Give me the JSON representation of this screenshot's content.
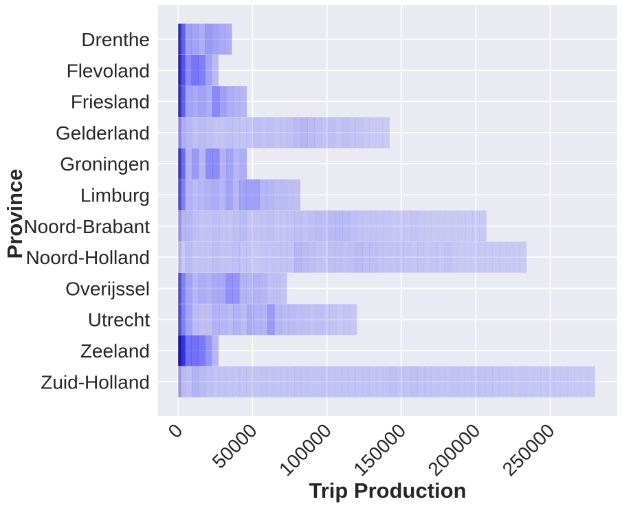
{
  "chart_data": {
    "type": "heatmap",
    "orientation": "horizontal-histogram",
    "xlabel": "Trip Production",
    "ylabel": "Province",
    "xlim": [
      -13500,
      295000
    ],
    "x_ticks": [
      0,
      50000,
      100000,
      150000,
      200000,
      250000
    ],
    "x_tick_labels": [
      "0",
      "50000",
      "100000",
      "150000",
      "200000",
      "250000"
    ],
    "x_tick_rotation": 45,
    "grid": true,
    "background": "#eaeaf2",
    "grid_color": "#ffffff",
    "base_color": "#0000ff",
    "bin_width": 4600,
    "categories": [
      "Drenthe",
      "Flevoland",
      "Friesland",
      "Gelderland",
      "Groningen",
      "Limburg",
      "Noord-Brabant",
      "Noord-Holland",
      "Overijssel",
      "Utrecht",
      "Zeeland",
      "Zuid-Holland"
    ],
    "rows": [
      {
        "name": "Drenthe",
        "max": 36000,
        "density": [
          0.6,
          0.32,
          0.3,
          0.26,
          0.34,
          0.3,
          0.28,
          0.26
        ]
      },
      {
        "name": "Flevoland",
        "max": 27000,
        "density": [
          0.65,
          0.4,
          0.5,
          0.46,
          0.3,
          0.2
        ]
      },
      {
        "name": "Friesland",
        "max": 46000,
        "density": [
          0.6,
          0.3,
          0.28,
          0.3,
          0.26,
          0.42,
          0.32,
          0.26,
          0.24,
          0.22
        ]
      },
      {
        "name": "Gelderland",
        "max": 142000,
        "density": [
          0.26,
          0.22,
          0.18,
          0.2,
          0.18,
          0.16,
          0.16,
          0.18,
          0.17,
          0.16,
          0.17,
          0.18,
          0.17,
          0.18,
          0.16,
          0.17,
          0.18,
          0.2,
          0.22,
          0.2,
          0.18,
          0.17,
          0.18,
          0.16,
          0.18,
          0.17,
          0.16,
          0.15,
          0.14,
          0.14,
          0.14
        ]
      },
      {
        "name": "Groningen",
        "max": 46000,
        "density": [
          0.55,
          0.24,
          0.34,
          0.22,
          0.4,
          0.4,
          0.24,
          0.3,
          0.22,
          0.26
        ]
      },
      {
        "name": "Limburg",
        "max": 82000,
        "density": [
          0.45,
          0.24,
          0.2,
          0.22,
          0.24,
          0.26,
          0.22,
          0.3,
          0.22,
          0.3,
          0.32,
          0.32,
          0.22,
          0.22,
          0.2,
          0.2,
          0.18,
          0.18
        ]
      },
      {
        "name": "Noord-Brabant",
        "max": 207000,
        "density": [
          0.22,
          0.22,
          0.18,
          0.16,
          0.17,
          0.18,
          0.17,
          0.16,
          0.18,
          0.2,
          0.17,
          0.16,
          0.17,
          0.18,
          0.16,
          0.16,
          0.17,
          0.18,
          0.17,
          0.18,
          0.2,
          0.19,
          0.2,
          0.21,
          0.2,
          0.18,
          0.17,
          0.16,
          0.17,
          0.16,
          0.16,
          0.15,
          0.15,
          0.15,
          0.16,
          0.15,
          0.15,
          0.14,
          0.14,
          0.14,
          0.14,
          0.14,
          0.14,
          0.14,
          0.14
        ]
      },
      {
        "name": "Noord-Holland",
        "max": 234000,
        "density": [
          0.14,
          0.2,
          0.16,
          0.17,
          0.16,
          0.18,
          0.16,
          0.16,
          0.18,
          0.17,
          0.16,
          0.15,
          0.16,
          0.16,
          0.16,
          0.17,
          0.16,
          0.22,
          0.2,
          0.18,
          0.17,
          0.16,
          0.18,
          0.18,
          0.17,
          0.18,
          0.2,
          0.18,
          0.19,
          0.17,
          0.16,
          0.16,
          0.17,
          0.16,
          0.15,
          0.16,
          0.15,
          0.16,
          0.15,
          0.17,
          0.15,
          0.14,
          0.14,
          0.14,
          0.14,
          0.14,
          0.14,
          0.14,
          0.14,
          0.14,
          0.14
        ]
      },
      {
        "name": "Overijssel",
        "max": 73000,
        "density": [
          0.45,
          0.3,
          0.22,
          0.26,
          0.24,
          0.28,
          0.28,
          0.38,
          0.36,
          0.24,
          0.22,
          0.24,
          0.22,
          0.18,
          0.18,
          0.16
        ]
      },
      {
        "name": "Utrecht",
        "max": 120000,
        "density": [
          0.45,
          0.3,
          0.2,
          0.18,
          0.18,
          0.24,
          0.22,
          0.2,
          0.24,
          0.2,
          0.28,
          0.24,
          0.24,
          0.34,
          0.22,
          0.2,
          0.2,
          0.18,
          0.18,
          0.17,
          0.18,
          0.17,
          0.16,
          0.15,
          0.16,
          0.15
        ]
      },
      {
        "name": "Zeeland",
        "max": 27000,
        "density": [
          0.8,
          0.52,
          0.52,
          0.48,
          0.36,
          0.22
        ]
      },
      {
        "name": "Zuid-Holland",
        "max": 280000,
        "density": [
          0.2,
          0.18,
          0.24,
          0.2,
          0.18,
          0.16,
          0.17,
          0.16,
          0.16,
          0.17,
          0.16,
          0.16,
          0.17,
          0.16,
          0.16,
          0.16,
          0.16,
          0.17,
          0.17,
          0.16,
          0.16,
          0.17,
          0.16,
          0.17,
          0.17,
          0.17,
          0.16,
          0.17,
          0.16,
          0.16,
          0.17,
          0.18,
          0.16,
          0.17,
          0.18,
          0.17,
          0.17,
          0.16,
          0.16,
          0.16,
          0.17,
          0.16,
          0.16,
          0.16,
          0.17,
          0.16,
          0.16,
          0.16,
          0.16,
          0.15,
          0.16,
          0.15,
          0.15,
          0.15,
          0.15,
          0.15,
          0.15,
          0.14,
          0.14,
          0.14,
          0.14
        ]
      }
    ]
  }
}
